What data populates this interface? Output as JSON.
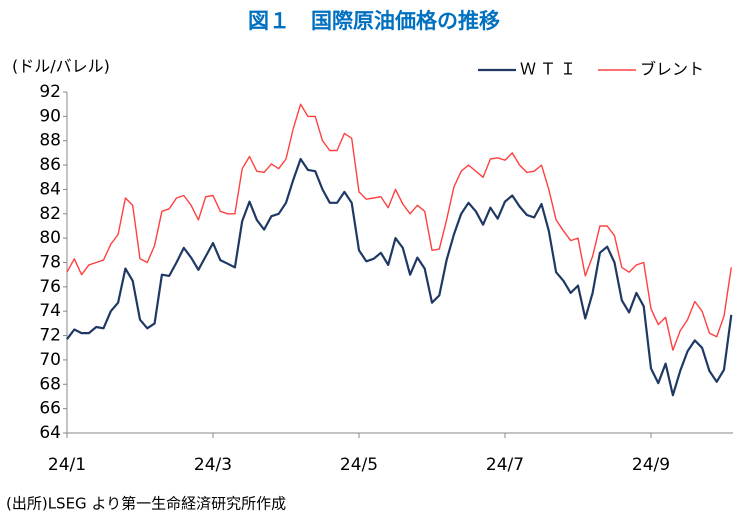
{
  "chart_data": {
    "type": "line",
    "title": "図１　国際原油価格の推移",
    "y_axis_label": "(ドル/バレル)",
    "source": "(出所)LSEG より第一生命経済研究所作成",
    "categories": [
      "24/1",
      null,
      null,
      null,
      null,
      null,
      null,
      null,
      null,
      null,
      null,
      null,
      null,
      null,
      null,
      null,
      null,
      null,
      null,
      null,
      "24/3",
      null,
      null,
      null,
      null,
      null,
      null,
      null,
      null,
      null,
      null,
      null,
      null,
      null,
      null,
      null,
      null,
      null,
      null,
      null,
      "24/5",
      null,
      null,
      null,
      null,
      null,
      null,
      null,
      null,
      null,
      null,
      null,
      null,
      null,
      null,
      null,
      null,
      null,
      null,
      null,
      "24/7",
      null,
      null,
      null,
      null,
      null,
      null,
      null,
      null,
      null,
      null,
      null,
      null,
      null,
      null,
      null,
      null,
      null,
      null,
      null,
      "24/9",
      null,
      null,
      null,
      null,
      null,
      null,
      null,
      null,
      null,
      null,
      null
    ],
    "series": [
      {
        "name": "ＷＴＩ",
        "color": "#1f3864",
        "values": [
          71.7,
          72.5,
          72.2,
          72.2,
          72.7,
          72.6,
          74,
          74.7,
          77.5,
          76.5,
          73.3,
          72.6,
          73,
          77,
          76.9,
          78,
          79.2,
          78.4,
          77.4,
          78.5,
          79.6,
          78.2,
          77.9,
          77.6,
          81.4,
          83,
          81.5,
          80.7,
          81.8,
          82,
          82.9,
          84.8,
          86.5,
          85.6,
          85.5,
          84,
          82.9,
          82.9,
          83.8,
          82.9,
          79,
          78.1,
          78.3,
          78.8,
          77.8,
          80,
          79.2,
          77,
          78.4,
          77.5,
          74.7,
          75.3,
          78.2,
          80.3,
          82,
          82.9,
          82.2,
          81.1,
          82.5,
          81.6,
          83,
          83.5,
          82.6,
          81.9,
          81.7,
          82.8,
          80.6,
          77.2,
          76.5,
          75.5,
          76.1,
          73.4,
          75.5,
          78.8,
          79.3,
          78,
          74.9,
          73.9,
          75.5,
          74.4,
          69.3,
          68.1,
          69.7,
          67.1,
          69.1,
          70.7,
          71.6,
          71,
          69.1,
          68.2,
          69.2,
          73.7
        ]
      },
      {
        "name": "ブレント",
        "color": "#ff4040",
        "values": [
          77.2,
          78.3,
          77,
          77.8,
          78,
          78.2,
          79.5,
          80.3,
          83.3,
          82.7,
          78.3,
          78,
          79.4,
          82.2,
          82.4,
          83.3,
          83.5,
          82.7,
          81.5,
          83.4,
          83.5,
          82.2,
          82,
          82,
          85.7,
          86.7,
          85.5,
          85.4,
          86.1,
          85.7,
          86.5,
          89,
          91,
          90,
          90,
          88,
          87.2,
          87.2,
          88.6,
          88.2,
          83.8,
          83.2,
          83.3,
          83.4,
          82.5,
          84,
          82.8,
          82,
          82.7,
          82.2,
          79,
          79.1,
          81.5,
          84.2,
          85.5,
          86,
          85.5,
          85,
          86.5,
          86.6,
          86.4,
          87,
          86,
          85.4,
          85.5,
          86,
          84,
          81.5,
          80.6,
          79.8,
          80,
          76.9,
          78.5,
          81,
          81,
          80.2,
          77.6,
          77.2,
          77.8,
          78,
          74.2,
          72.9,
          73.5,
          70.8,
          72.4,
          73.3,
          74.8,
          74,
          72.2,
          71.9,
          73.6,
          77.6
        ]
      }
    ],
    "ylim": [
      64,
      92
    ],
    "yticks": [
      64,
      66,
      68,
      70,
      72,
      74,
      76,
      78,
      80,
      82,
      84,
      86,
      88,
      90,
      92
    ],
    "grid": false,
    "legend": "top-right"
  }
}
